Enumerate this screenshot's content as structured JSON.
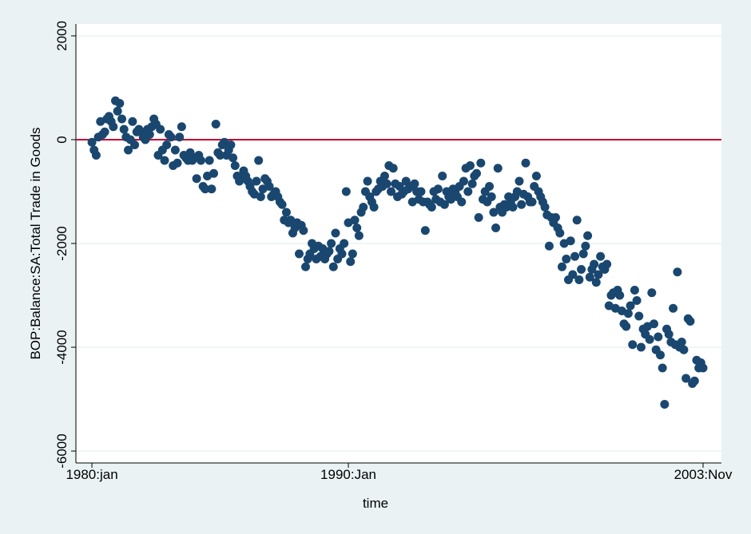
{
  "chart_data": {
    "type": "scatter",
    "xlabel": "time",
    "ylabel": "BOP:Balance:SA:Total Trade in Goods",
    "xlim": [
      232.5,
      534.6
    ],
    "ylim": [
      -6230,
      2230
    ],
    "xticks": [
      {
        "value": 240,
        "label": "1980:jan"
      },
      {
        "value": 360,
        "label": "1990:Jan"
      },
      {
        "value": 526,
        "label": "2003:Nov"
      }
    ],
    "yticks": [
      -6000,
      -4000,
      -2000,
      0,
      2000
    ],
    "grid": true,
    "hline": {
      "value": 0,
      "color": "#c10534"
    },
    "series": [
      {
        "color": "#1a476f",
        "x": [
          240,
          241,
          242,
          243,
          244,
          245,
          246,
          247,
          248,
          249,
          250,
          251,
          252,
          253,
          254,
          255,
          256,
          257,
          258,
          259,
          260,
          261,
          262,
          263,
          264,
          265,
          266,
          267,
          268,
          269,
          270,
          271,
          272,
          273,
          274,
          275,
          276,
          277,
          278,
          279,
          280,
          281,
          282,
          283,
          284,
          285,
          286,
          287,
          288,
          289,
          290,
          291,
          292,
          293,
          294,
          295,
          296,
          297,
          298,
          299,
          300,
          301,
          302,
          303,
          304,
          305,
          306,
          307,
          308,
          309,
          310,
          311,
          312,
          313,
          314,
          315,
          316,
          317,
          318,
          319,
          320,
          321,
          322,
          323,
          324,
          325,
          326,
          327,
          328,
          329,
          330,
          331,
          332,
          333,
          334,
          335,
          336,
          337,
          338,
          339,
          340,
          341,
          342,
          343,
          344,
          345,
          346,
          347,
          348,
          349,
          350,
          351,
          352,
          353,
          354,
          355,
          356,
          357,
          358,
          359,
          360,
          361,
          362,
          363,
          364,
          365,
          366,
          367,
          368,
          369,
          370,
          371,
          372,
          373,
          374,
          375,
          376,
          377,
          378,
          379,
          380,
          381,
          382,
          383,
          384,
          385,
          386,
          387,
          388,
          389,
          390,
          391,
          392,
          393,
          394,
          395,
          396,
          397,
          398,
          399,
          400,
          401,
          402,
          403,
          404,
          405,
          406,
          407,
          408,
          409,
          410,
          411,
          412,
          413,
          414,
          415,
          416,
          417,
          418,
          419,
          420,
          421,
          422,
          423,
          424,
          425,
          426,
          427,
          428,
          429,
          430,
          431,
          432,
          433,
          434,
          435,
          436,
          437,
          438,
          439,
          440,
          441,
          442,
          443,
          444,
          445,
          446,
          447,
          448,
          449,
          450,
          451,
          452,
          453,
          454,
          455,
          456,
          457,
          458,
          459,
          460,
          461,
          462,
          463,
          464,
          465,
          466,
          467,
          468,
          469,
          470,
          471,
          472,
          473,
          474,
          475,
          476,
          477,
          478,
          479,
          480,
          481,
          482,
          483,
          484,
          485,
          486,
          487,
          488,
          489,
          490,
          491,
          492,
          493,
          494,
          495,
          496,
          497,
          498,
          499,
          500,
          501,
          502,
          503,
          504,
          505,
          506,
          507,
          508,
          509,
          510,
          511,
          512,
          513,
          514,
          515,
          516,
          517,
          518,
          519,
          520,
          521,
          522,
          523,
          524,
          525,
          526
        ],
        "values": [
          -50,
          -200,
          -300,
          50,
          350,
          100,
          150,
          400,
          450,
          350,
          250,
          750,
          550,
          700,
          400,
          200,
          50,
          -200,
          0,
          350,
          -100,
          150,
          200,
          150,
          50,
          0,
          200,
          100,
          250,
          400,
          300,
          -300,
          200,
          -200,
          -400,
          -100,
          100,
          50,
          -500,
          -200,
          -450,
          50,
          250,
          -300,
          -350,
          -400,
          -250,
          -400,
          -350,
          -750,
          -300,
          -400,
          -900,
          -950,
          -700,
          -400,
          -950,
          -650,
          300,
          -250,
          -300,
          -100,
          -50,
          -300,
          -200,
          -100,
          -350,
          -500,
          -700,
          -800,
          -750,
          -600,
          -700,
          -800,
          -900,
          -1000,
          -1050,
          -800,
          -400,
          -1100,
          -950,
          -750,
          -800,
          -900,
          -1100,
          -1050,
          -1000,
          -1100,
          -1200,
          -1250,
          -1550,
          -1400,
          -1600,
          -1550,
          -1800,
          -1700,
          -1600,
          -2200,
          -1650,
          -1750,
          -2450,
          -2300,
          -2200,
          -2000,
          -2100,
          -2300,
          -2050,
          -2250,
          -2100,
          -2300,
          -2200,
          -2150,
          -2000,
          -2450,
          -1800,
          -2300,
          -2100,
          -2200,
          -2000,
          -1000,
          -1600,
          -2350,
          -2200,
          -1550,
          -1700,
          -1850,
          -1400,
          -1300,
          -1000,
          -800,
          -1100,
          -1200,
          -1300,
          -1000,
          -950,
          -800,
          -900,
          -700,
          -850,
          -500,
          -1000,
          -550,
          -850,
          -1100,
          -900,
          -1050,
          -1000,
          -800,
          -950,
          -900,
          -1200,
          -850,
          -1000,
          -1150,
          -1000,
          -1200,
          -1750,
          -1200,
          -1250,
          -1300,
          -1000,
          -1150,
          -950,
          -1200,
          -700,
          -1250,
          -1000,
          -1100,
          -1150,
          -950,
          -1000,
          -1100,
          -900,
          -1200,
          -800,
          -550,
          -1000,
          -500,
          -850,
          -700,
          -650,
          -1500,
          -450,
          -1150,
          -1000,
          -1200,
          -900,
          -1100,
          -1400,
          -1700,
          -550,
          -1300,
          -1400,
          -1250,
          -1300,
          -1100,
          -1200,
          -1300,
          -1100,
          -1000,
          -800,
          -1250,
          -1050,
          -450,
          -1100,
          -1200,
          -1200,
          -900,
          -700,
          -1000,
          -1100,
          -1200,
          -1300,
          -1450,
          -2050,
          -1500,
          -1600,
          -1500,
          -1700,
          -1800,
          -2450,
          -2000,
          -2300,
          -2700,
          -1950,
          -2600,
          -2250,
          -1550,
          -2700,
          -2500,
          -2200,
          -2050,
          -1850,
          -2650,
          -2500,
          -2400,
          -2750,
          -2600,
          -2250,
          -2450,
          -2500,
          -2400,
          -3200,
          -3000,
          -2950,
          -3250,
          -2900,
          -3000,
          -3300,
          -3550,
          -3600,
          -3350,
          -3200,
          -3950,
          -2900,
          -3100,
          -3400,
          -4000,
          -3650,
          -3750,
          -3600,
          -3850,
          -2950,
          -3550,
          -4050,
          -3800,
          -4150,
          -4400,
          -5100,
          -3650,
          -3750,
          -3900,
          -3250,
          -3950,
          -2550,
          -4000,
          -3900,
          -4050,
          -4600,
          -3450,
          -3500,
          -4700,
          -4650,
          -4250,
          -4400,
          -4300,
          -4400
        ]
      }
    ]
  }
}
